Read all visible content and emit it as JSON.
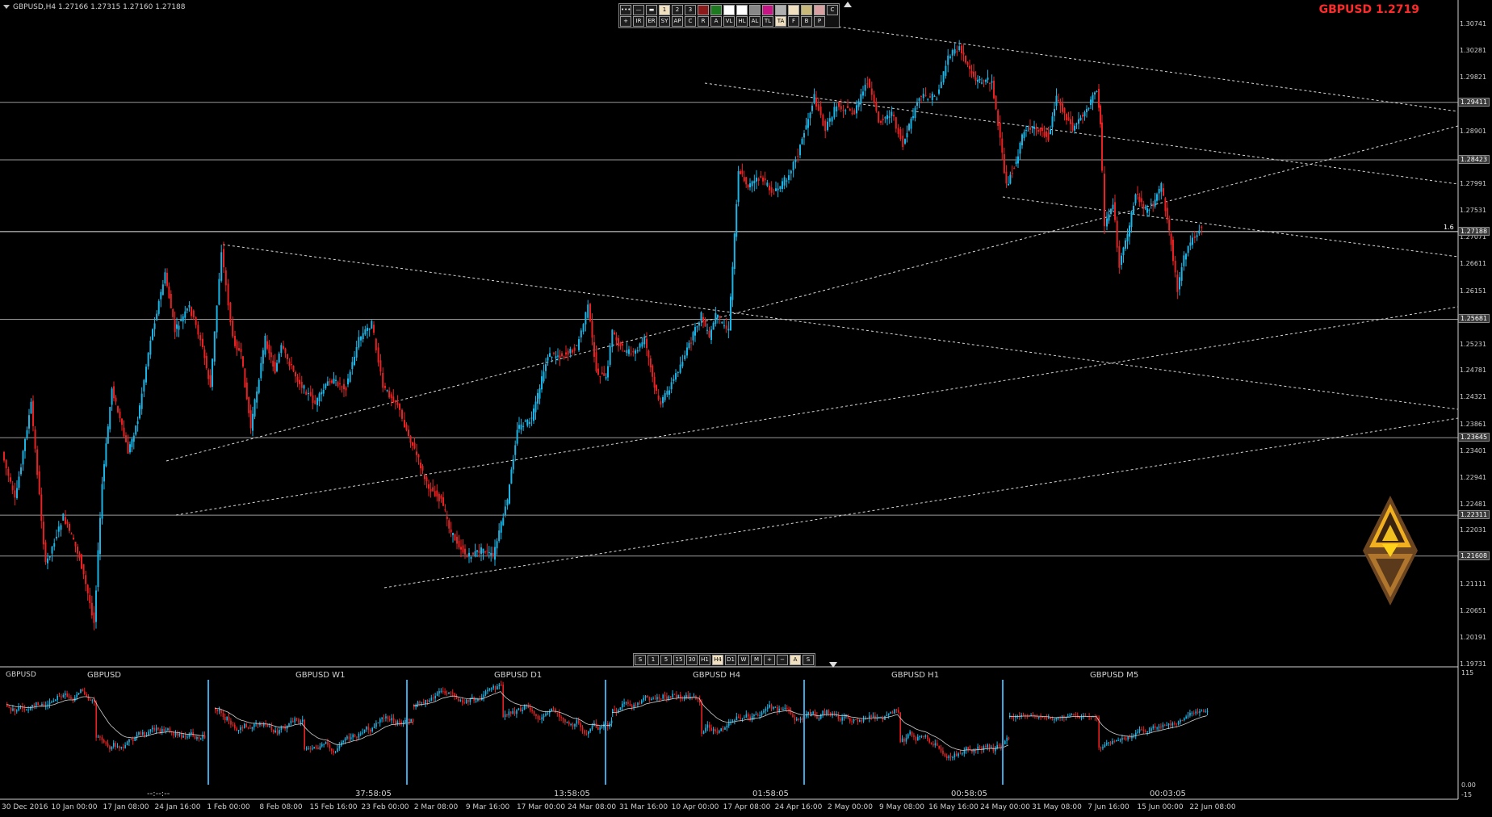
{
  "header": {
    "symbol_info": "GBPUSD,H4  1.27166 1.27315 1.27160 1.27188",
    "big_title": "GBPUSD 1.2719"
  },
  "colors": {
    "bull": "#19b5e6",
    "bear": "#e82222",
    "title": "#ff2a2a",
    "grid_line": "#9a9a9a",
    "trend_line": "#d8d8d8"
  },
  "toolbar_top": {
    "row1": [
      "menu-dots",
      "line-thin",
      "line-thick",
      "1",
      "2",
      "3",
      "#8b1a1a",
      "#1e7a1e",
      "#ffffff",
      "#ffffff",
      "#888888",
      "#c71585",
      "#b0b0b0",
      "#f0e0c0",
      "#c8b87a",
      "#d8a0a0",
      "C"
    ],
    "row2": [
      "+",
      "IR",
      "ER",
      "SY",
      "AP",
      "C",
      "R",
      "A",
      "VL",
      "HL",
      "AL",
      "TL",
      "TA",
      "F",
      "B",
      "P"
    ]
  },
  "toolbar_bottom": {
    "buttons": [
      "S",
      "1",
      "5",
      "15",
      "30",
      "H1",
      "H4",
      "D1",
      "W",
      "M",
      "+",
      "−",
      "A",
      "S"
    ],
    "selected": "H4"
  },
  "price_axis": {
    "ticks": [
      "1.30741",
      "1.30281",
      "1.29821",
      "1.28901",
      "1.27991",
      "1.27531",
      "1.27071",
      "1.26611",
      "1.26151",
      "1.25231",
      "1.24781",
      "1.24321",
      "1.23861",
      "1.23401",
      "1.22941",
      "1.22481",
      "1.22031",
      "1.21111",
      "1.20651",
      "1.20191",
      "1.19731"
    ],
    "boxed": [
      "1.29411",
      "1.28423",
      "1.27188",
      "1.25681",
      "1.23645",
      "1.22311",
      "1.21608"
    ],
    "level_label": "1.6"
  },
  "time_axis": {
    "ticks": [
      "30 Dec 2016",
      "10 Jan 00:00",
      "17 Jan 08:00",
      "24 Jan 16:00",
      "1 Feb 00:00",
      "8 Feb 08:00",
      "15 Feb 16:00",
      "23 Feb 00:00",
      "2 Mar 08:00",
      "9 Mar 16:00",
      "17 Mar 00:00",
      "24 Mar 08:00",
      "31 Mar 16:00",
      "10 Apr 00:00",
      "17 Apr 08:00",
      "24 Apr 16:00",
      "2 May 00:00",
      "9 May 08:00",
      "16 May 16:00",
      "24 May 00:00",
      "31 May 08:00",
      "7 Jun 16:00",
      "15 Jun 00:00",
      "22 Jun 08:00"
    ]
  },
  "indicator": {
    "name": "GBPUSD",
    "axis_ticks": [
      "115",
      "0.00",
      "-15"
    ],
    "panes": [
      {
        "label": "GBPUSD",
        "timer": "--:--:--"
      },
      {
        "label": "GBPUSD W1",
        "timer": "37:58:05"
      },
      {
        "label": "GBPUSD D1",
        "timer": "13:58:05"
      },
      {
        "label": "GBPUSD H4",
        "timer": "01:58:05"
      },
      {
        "label": "GBPUSD H1",
        "timer": "00:58:05"
      },
      {
        "label": "GBPUSD M5",
        "timer": "00:03:05"
      }
    ]
  },
  "logo": {
    "name": "triangle-emblem",
    "colors": [
      "#8b5a2b",
      "#f0c020",
      "#5a3a1a"
    ]
  }
}
